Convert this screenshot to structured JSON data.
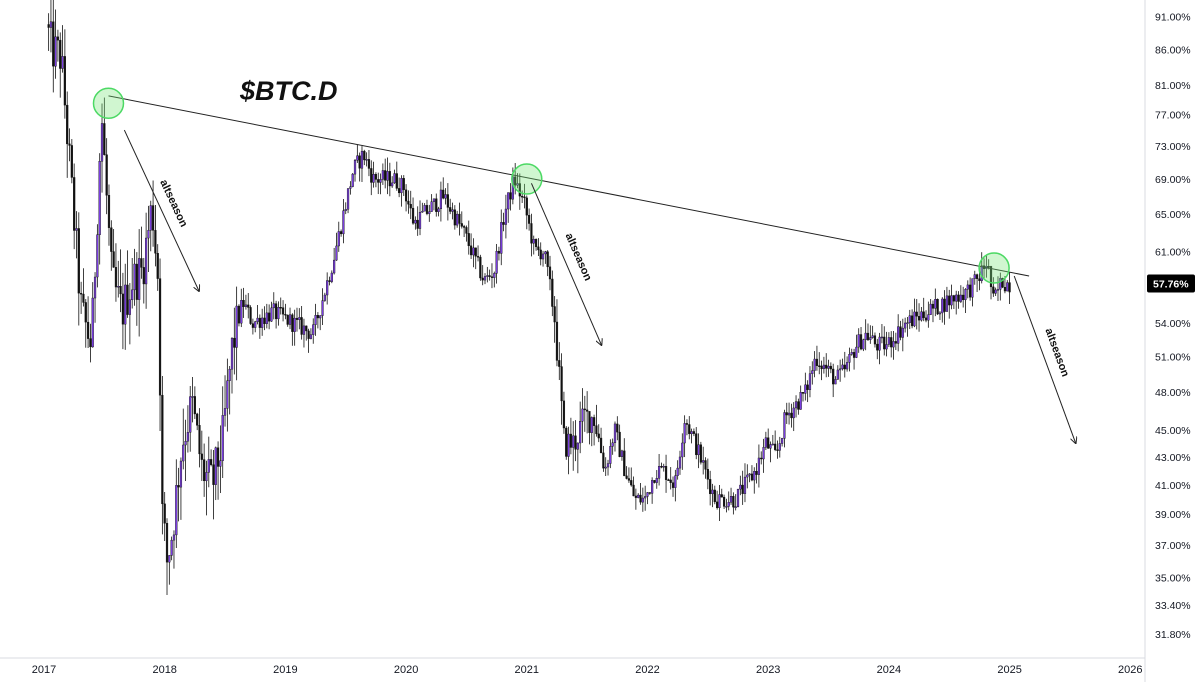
{
  "chart_data": {
    "type": "candlestick",
    "title": "$BTC.D",
    "y_scale": "log",
    "ylim": [
      30.5,
      93.5
    ],
    "xlim": [
      "2017-01-01",
      "2026-01-01"
    ],
    "x_ticks": [
      "2017",
      "2018",
      "2019",
      "2020",
      "2021",
      "2022",
      "2023",
      "2024",
      "2025",
      "2026"
    ],
    "y_ticks": [
      "31.80%",
      "33.40%",
      "35.00%",
      "37.00%",
      "39.00%",
      "41.00%",
      "43.00%",
      "45.00%",
      "48.00%",
      "51.00%",
      "54.00%",
      "57.76%",
      "61.00%",
      "65.00%",
      "69.00%",
      "73.00%",
      "77.00%",
      "81.00%",
      "86.00%",
      "91.00%"
    ],
    "y_tick_values": [
      31.8,
      33.4,
      35.0,
      37.0,
      39.0,
      41.0,
      43.0,
      45.0,
      48.0,
      51.0,
      54.0,
      57.76,
      61.0,
      65.0,
      69.0,
      73.0,
      77.0,
      81.0,
      86.0,
      91.0
    ],
    "current_value": 57.76,
    "current_label": "57.76%",
    "colors": {
      "up": "#7a3ee0",
      "down": "#111111",
      "trendline": "#222222",
      "circle": "#4cd964"
    },
    "path_points": [
      [
        "2017-01-01",
        93
      ],
      [
        "2017-02-01",
        86
      ],
      [
        "2017-03-01",
        85
      ],
      [
        "2017-04-01",
        68
      ],
      [
        "2017-05-01",
        55
      ],
      [
        "2017-06-01",
        52
      ],
      [
        "2017-07-01",
        77
      ],
      [
        "2017-08-01",
        58
      ],
      [
        "2017-09-01",
        55
      ],
      [
        "2017-10-01",
        58
      ],
      [
        "2017-11-01",
        59
      ],
      [
        "2017-12-01",
        66
      ],
      [
        "2017-12-20",
        58
      ],
      [
        "2018-01-01",
        39
      ],
      [
        "2018-01-15",
        36
      ],
      [
        "2018-02-01",
        38
      ],
      [
        "2018-03-01",
        44
      ],
      [
        "2018-04-01",
        47
      ],
      [
        "2018-05-01",
        42
      ],
      [
        "2018-06-01",
        41
      ],
      [
        "2018-07-01",
        44
      ],
      [
        "2018-08-01",
        52
      ],
      [
        "2018-09-01",
        56
      ],
      [
        "2018-10-01",
        54
      ],
      [
        "2018-12-01",
        55
      ],
      [
        "2019-02-01",
        54
      ],
      [
        "2019-04-01",
        53
      ],
      [
        "2019-06-01",
        60
      ],
      [
        "2019-08-01",
        70
      ],
      [
        "2019-09-01",
        72
      ],
      [
        "2019-10-01",
        69
      ],
      [
        "2019-12-01",
        69
      ],
      [
        "2020-01-01",
        68
      ],
      [
        "2020-02-01",
        64
      ],
      [
        "2020-04-01",
        66
      ],
      [
        "2020-05-01",
        67
      ],
      [
        "2020-07-01",
        63
      ],
      [
        "2020-09-01",
        58
      ],
      [
        "2020-10-01",
        59
      ],
      [
        "2020-11-01",
        65
      ],
      [
        "2020-12-01",
        69
      ],
      [
        "2021-01-01",
        66
      ],
      [
        "2021-02-01",
        61
      ],
      [
        "2021-03-01",
        61
      ],
      [
        "2021-04-01",
        55
      ],
      [
        "2021-05-01",
        44
      ],
      [
        "2021-06-01",
        44
      ],
      [
        "2021-07-01",
        46
      ],
      [
        "2021-08-01",
        46
      ],
      [
        "2021-09-01",
        42
      ],
      [
        "2021-10-01",
        45
      ],
      [
        "2021-11-01",
        42
      ],
      [
        "2021-12-01",
        40
      ],
      [
        "2022-01-01",
        40
      ],
      [
        "2022-02-01",
        42
      ],
      [
        "2022-03-01",
        42
      ],
      [
        "2022-04-01",
        41
      ],
      [
        "2022-05-01",
        46
      ],
      [
        "2022-06-01",
        44
      ],
      [
        "2022-07-01",
        42
      ],
      [
        "2022-08-01",
        40
      ],
      [
        "2022-09-01",
        40
      ],
      [
        "2022-10-01",
        40
      ],
      [
        "2022-11-01",
        41
      ],
      [
        "2022-12-01",
        42
      ],
      [
        "2023-01-01",
        44
      ],
      [
        "2023-02-01",
        43
      ],
      [
        "2023-03-01",
        46
      ],
      [
        "2023-04-01",
        47
      ],
      [
        "2023-05-01",
        48
      ],
      [
        "2023-06-01",
        51
      ],
      [
        "2023-07-01",
        50
      ],
      [
        "2023-08-01",
        49
      ],
      [
        "2023-09-01",
        50
      ],
      [
        "2023-10-01",
        52
      ],
      [
        "2023-11-01",
        53
      ],
      [
        "2023-12-01",
        52
      ],
      [
        "2024-01-01",
        52
      ],
      [
        "2024-02-01",
        53
      ],
      [
        "2024-03-01",
        54
      ],
      [
        "2024-05-01",
        55
      ],
      [
        "2024-07-01",
        56
      ],
      [
        "2024-09-01",
        57
      ],
      [
        "2024-10-01",
        58
      ],
      [
        "2024-11-01",
        60
      ],
      [
        "2024-11-20",
        56
      ],
      [
        "2024-12-15",
        58
      ],
      [
        "2025-01-01",
        57.76
      ]
    ],
    "trendline": {
      "from": [
        "2017-07-15",
        79.5
      ],
      "to": [
        "2025-03-01",
        58.5
      ]
    },
    "highlight_circles": [
      {
        "date": "2017-07-15",
        "value": 78.5
      },
      {
        "date": "2021-01-01",
        "value": 69.0
      },
      {
        "date": "2024-11-15",
        "value": 59.3
      }
    ],
    "annotations": [
      {
        "text": "altseason",
        "from": [
          "2017-09-01",
          75
        ],
        "to": [
          "2018-04-15",
          57
        ]
      },
      {
        "text": "altseason",
        "from": [
          "2021-01-15",
          68.5
        ],
        "to": [
          "2021-08-15",
          52
        ]
      },
      {
        "text": "altseason",
        "from": [
          "2025-01-15",
          58.5
        ],
        "to": [
          "2025-07-20",
          44
        ]
      }
    ]
  }
}
